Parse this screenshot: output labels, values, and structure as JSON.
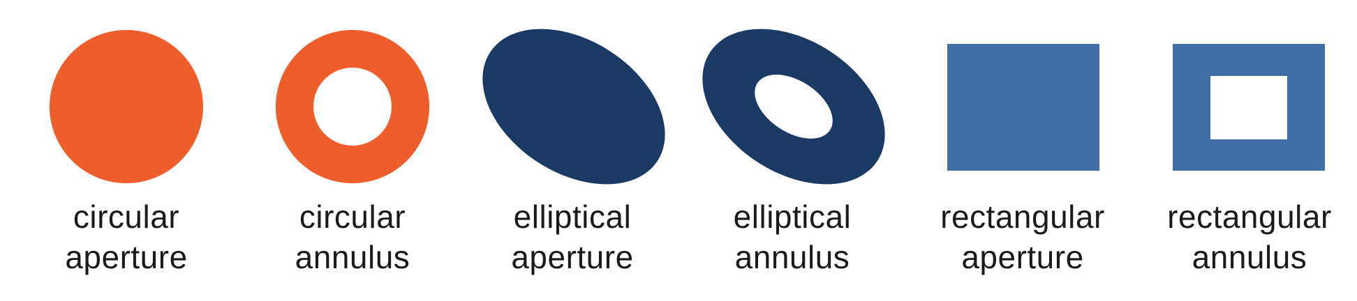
{
  "colors": {
    "orange": "#ee5e2c",
    "navy": "#1a3a64",
    "steel_blue": "#416da6",
    "background": "#ffffff"
  },
  "shapes": [
    {
      "id": "circular-aperture",
      "line1": "circular",
      "line2": "aperture",
      "shape": "circle",
      "hollow": false,
      "color": "orange"
    },
    {
      "id": "circular-annulus",
      "line1": "circular",
      "line2": "annulus",
      "shape": "circle",
      "hollow": true,
      "color": "orange"
    },
    {
      "id": "elliptical-aperture",
      "line1": "elliptical",
      "line2": "aperture",
      "shape": "ellipse",
      "hollow": false,
      "color": "navy"
    },
    {
      "id": "elliptical-annulus",
      "line1": "elliptical",
      "line2": "annulus",
      "shape": "ellipse",
      "hollow": true,
      "color": "navy"
    },
    {
      "id": "rectangular-aperture",
      "line1": "rectangular",
      "line2": "aperture",
      "shape": "rectangle",
      "hollow": false,
      "color": "steel_blue"
    },
    {
      "id": "rectangular-annulus",
      "line1": "rectangular",
      "line2": "annulus",
      "shape": "rectangle",
      "hollow": true,
      "color": "steel_blue"
    }
  ]
}
